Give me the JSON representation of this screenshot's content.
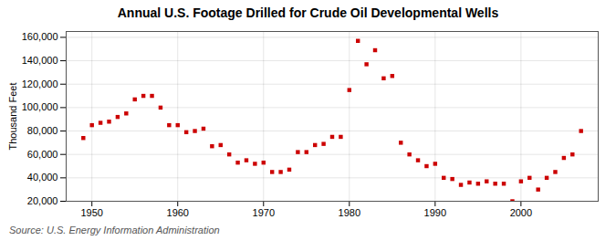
{
  "chart_data": {
    "type": "scatter",
    "title": "Annual U.S. Footage Drilled for Crude Oil Developmental Wells",
    "ylabel": "Thousand Feet",
    "source": "Source: U.S. Energy Information Administration",
    "color": "#cc0000",
    "marker": "square",
    "grid": true,
    "x": [
      1949,
      1950,
      1951,
      1952,
      1953,
      1954,
      1955,
      1956,
      1957,
      1958,
      1959,
      1960,
      1961,
      1962,
      1963,
      1964,
      1965,
      1966,
      1967,
      1968,
      1969,
      1970,
      1971,
      1972,
      1973,
      1974,
      1975,
      1976,
      1977,
      1978,
      1979,
      1980,
      1981,
      1982,
      1983,
      1984,
      1985,
      1986,
      1987,
      1988,
      1989,
      1990,
      1991,
      1992,
      1993,
      1994,
      1995,
      1996,
      1997,
      1998,
      1999,
      2000,
      2001,
      2002,
      2003,
      2004,
      2005,
      2006,
      2007
    ],
    "values": [
      74000,
      85000,
      87000,
      88000,
      92000,
      95000,
      107000,
      110000,
      110000,
      100000,
      85000,
      85000,
      79000,
      80000,
      82000,
      67000,
      68000,
      60000,
      53000,
      55000,
      52000,
      53000,
      45000,
      45000,
      47000,
      62000,
      62000,
      68000,
      69000,
      75000,
      75000,
      115000,
      157000,
      137000,
      149000,
      125000,
      127000,
      70000,
      60000,
      55000,
      50000,
      52000,
      40000,
      39000,
      34000,
      36000,
      35000,
      37000,
      35000,
      35000,
      20000,
      37000,
      40000,
      30000,
      40000,
      45000,
      57000,
      60000,
      80000
    ],
    "xlim": [
      1947,
      2009
    ],
    "xticks": [
      1950,
      1960,
      1970,
      1980,
      1990,
      2000
    ],
    "ylim": [
      20000,
      165000
    ],
    "yticks": [
      {
        "value": 20000,
        "label": "20,000"
      },
      {
        "value": 40000,
        "label": "40,000"
      },
      {
        "value": 60000,
        "label": "60,000"
      },
      {
        "value": 80000,
        "label": "80,000"
      },
      {
        "value": 100000,
        "label": "100,000"
      },
      {
        "value": 120000,
        "label": "120,000"
      },
      {
        "value": 140000,
        "label": "140,000"
      },
      {
        "value": 160000,
        "label": "160,000"
      }
    ]
  }
}
